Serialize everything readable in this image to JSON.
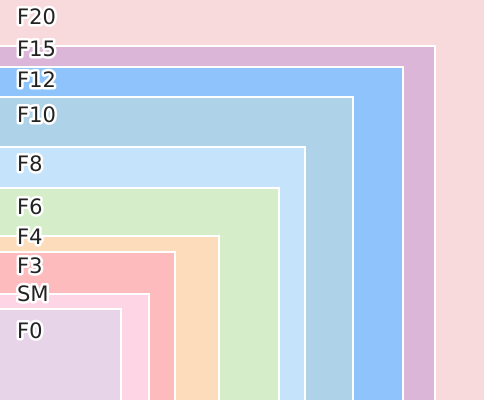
{
  "nodes": [
    {
      "label": "F20"
    },
    {
      "label": "F15"
    },
    {
      "label": "F12"
    },
    {
      "label": "F10"
    },
    {
      "label": "F8"
    },
    {
      "label": "F6"
    },
    {
      "label": "F4"
    },
    {
      "label": "F3"
    },
    {
      "label": "SM"
    },
    {
      "label": "F0"
    }
  ]
}
